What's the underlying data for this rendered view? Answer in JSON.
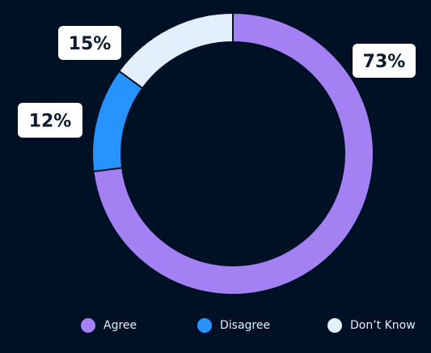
{
  "chart_data": {
    "type": "pie",
    "variant": "donut",
    "categories": [
      "Agree",
      "Disagree",
      "Don’t Know"
    ],
    "values": [
      73,
      12,
      15
    ],
    "labels": [
      "73%",
      "12%",
      "15%"
    ],
    "colors": [
      "#a381f2",
      "#2693ff",
      "#e3effd"
    ],
    "background": "#001126",
    "title": "",
    "legend": {
      "placement": "bottom",
      "labels": [
        "Agree",
        "Disagree",
        "Don’t Know"
      ]
    }
  }
}
